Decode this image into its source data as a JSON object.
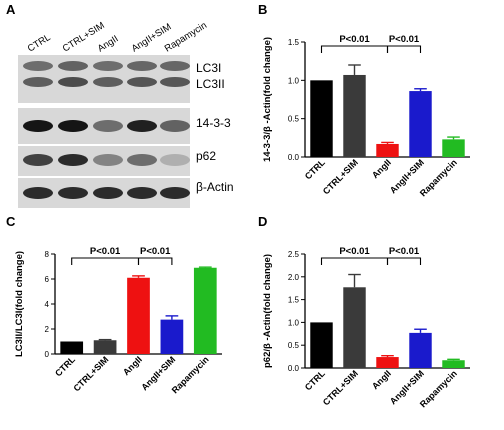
{
  "panel_letters": [
    "A",
    "B",
    "C",
    "D"
  ],
  "blot": {
    "lane_labels": [
      "CTRL",
      "CTRL+SIM",
      "AngII",
      "AngII+SIM",
      "Rapamycin"
    ],
    "strips": [
      {
        "labels": [
          "LC3I",
          "LC3II"
        ],
        "bands": [
          [
            0.55,
            0.62
          ],
          [
            0.6,
            0.7
          ],
          [
            0.55,
            0.62
          ],
          [
            0.58,
            0.66
          ],
          [
            0.58,
            0.65
          ]
        ]
      },
      {
        "labels": [
          "14-3-3"
        ],
        "bands": [
          [
            0.95
          ],
          [
            0.95
          ],
          [
            0.55
          ],
          [
            0.9
          ],
          [
            0.6
          ]
        ]
      },
      {
        "labels": [
          "p62"
        ],
        "bands": [
          [
            0.75
          ],
          [
            0.85
          ],
          [
            0.45
          ],
          [
            0.55
          ],
          [
            0.25
          ]
        ]
      },
      {
        "labels": [
          "β-Actin"
        ],
        "bands": [
          [
            0.85
          ],
          [
            0.85
          ],
          [
            0.85
          ],
          [
            0.85
          ],
          [
            0.85
          ]
        ]
      }
    ]
  },
  "chart_data": [
    {
      "panel": "B",
      "type": "bar",
      "categories": [
        "CTRL",
        "CTRL+SIM",
        "AngII",
        "AngII+SIM",
        "Rapamycin"
      ],
      "values": [
        1.0,
        1.07,
        0.17,
        0.86,
        0.23
      ],
      "errors": [
        0,
        0.13,
        0.02,
        0.03,
        0.03
      ],
      "colors": [
        "#000000",
        "#3a3a3a",
        "#ee1111",
        "#1a1acc",
        "#22bb22"
      ],
      "ylabel": "14-3-3/β -Actin(fold change)",
      "ylim": [
        0,
        1.5
      ],
      "yticks": [
        "0.0",
        "0.5",
        "1.0",
        "1.5"
      ],
      "annotations": [
        "P<0.01",
        "P<0.01"
      ]
    },
    {
      "panel": "C",
      "type": "bar",
      "categories": [
        "CTRL",
        "CTRL+SIM",
        "AngII",
        "AngII+SIM",
        "Rapamycin"
      ],
      "values": [
        1.0,
        1.1,
        6.1,
        2.75,
        6.9
      ],
      "errors": [
        0,
        0.05,
        0.15,
        0.3,
        0.05
      ],
      "colors": [
        "#000000",
        "#3a3a3a",
        "#ee1111",
        "#1a1acc",
        "#22bb22"
      ],
      "ylabel": "LC3II/LC3I(fold change)",
      "ylim": [
        0,
        8
      ],
      "yticks": [
        "0",
        "2",
        "4",
        "6",
        "8"
      ],
      "annotations": [
        "P<0.01",
        "P<0.01"
      ]
    },
    {
      "panel": "D",
      "type": "bar",
      "categories": [
        "CTRL",
        "CTRL+SIM",
        "AngII",
        "AngII+SIM",
        "Rapamycin"
      ],
      "values": [
        1.0,
        1.77,
        0.24,
        0.77,
        0.17
      ],
      "errors": [
        0,
        0.28,
        0.03,
        0.08,
        0.02
      ],
      "colors": [
        "#000000",
        "#3a3a3a",
        "#ee1111",
        "#1a1acc",
        "#22bb22"
      ],
      "ylabel": "p62/β -Actin(fold change)",
      "ylim": [
        0,
        2.5
      ],
      "yticks": [
        "0.0",
        "0.5",
        "1.0",
        "1.5",
        "2.0",
        "2.5"
      ],
      "annotations": [
        "P<0.01",
        "P<0.01"
      ]
    }
  ]
}
